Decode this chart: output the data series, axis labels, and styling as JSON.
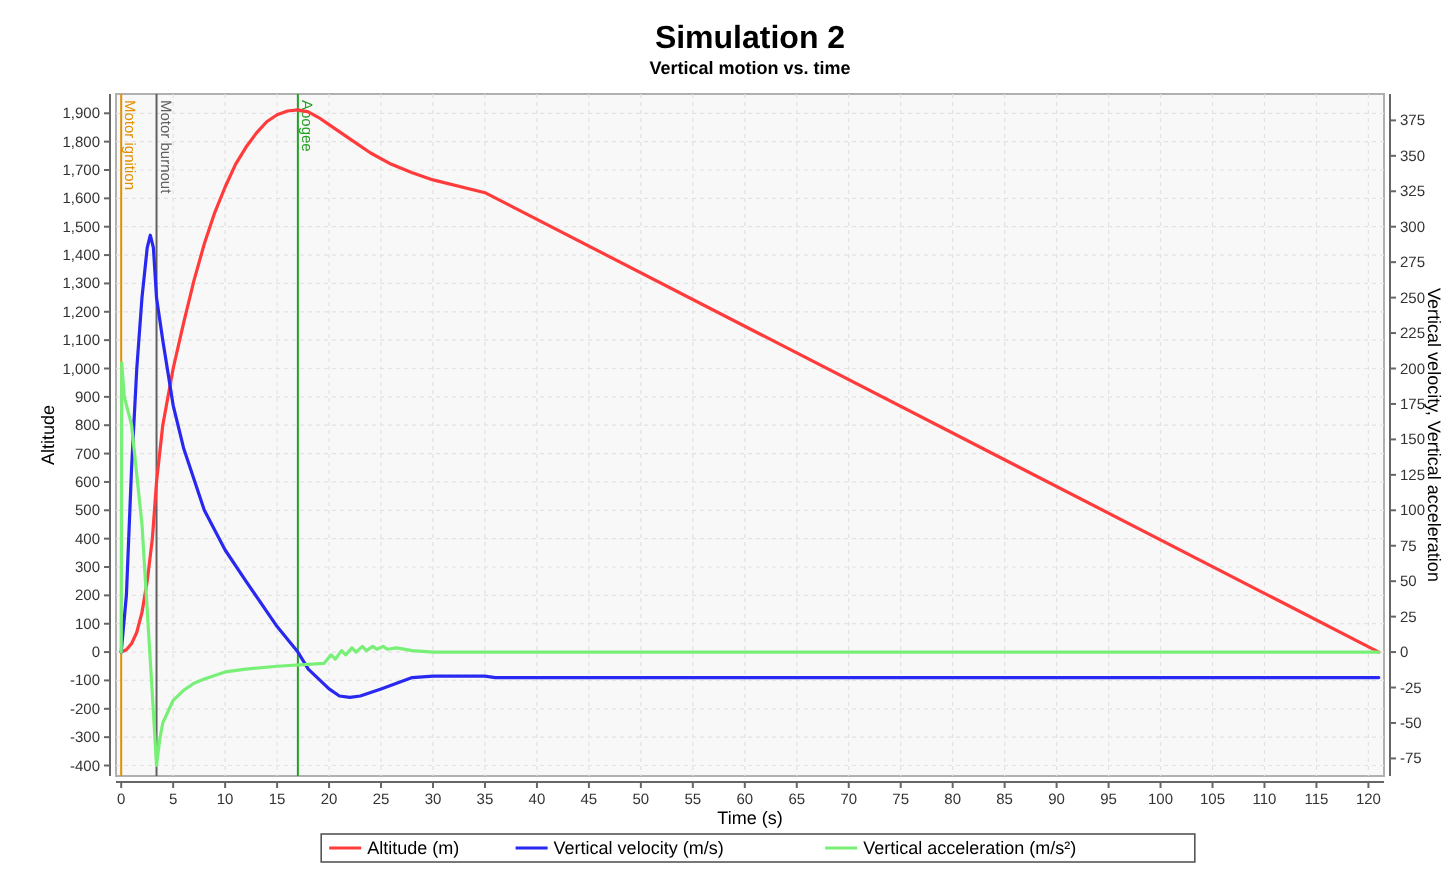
{
  "chart_data": {
    "type": "line",
    "title": "Simulation 2",
    "subtitle": "Vertical motion vs. time",
    "xlabel": "Time (s)",
    "ylabel": "Altitude",
    "y2label": "Vertical velocity, Vertical acceleration",
    "xlim": [
      -0.5,
      121.5
    ],
    "xticks": [
      0,
      5,
      10,
      15,
      20,
      25,
      30,
      35,
      40,
      45,
      50,
      55,
      60,
      65,
      70,
      75,
      80,
      85,
      90,
      95,
      100,
      105,
      110,
      115,
      120
    ],
    "ylim": [
      -437,
      1968
    ],
    "yticks": [
      -400,
      -300,
      -200,
      -100,
      0,
      100,
      200,
      300,
      400,
      500,
      600,
      700,
      800,
      900,
      {
        "value": 1000,
        "label": "1,000"
      },
      {
        "value": 1100,
        "label": "1,100"
      },
      {
        "value": 1200,
        "label": "1,200"
      },
      {
        "value": 1300,
        "label": "1,300"
      },
      {
        "value": 1400,
        "label": "1,400"
      },
      {
        "value": 1500,
        "label": "1,500"
      },
      {
        "value": 1600,
        "label": "1,600"
      },
      {
        "value": 1700,
        "label": "1,700"
      },
      {
        "value": 1800,
        "label": "1,800"
      },
      {
        "value": 1900,
        "label": "1,900"
      }
    ],
    "y2lim": [
      -87.4,
      393.6
    ],
    "y2ticks": [
      -75,
      -50,
      -25,
      0,
      25,
      50,
      75,
      100,
      125,
      150,
      175,
      200,
      225,
      250,
      275,
      300,
      325,
      350,
      375
    ],
    "grid": true,
    "legend": "bottom",
    "marker": "none",
    "line_style": "solid",
    "ref_lines": [
      {
        "axis": "x",
        "value": 0,
        "label": "Motor ignition",
        "color": "#e09000"
      },
      {
        "axis": "x",
        "value": 3.4,
        "label": "Motor burnout",
        "color": "#606060"
      },
      {
        "axis": "x",
        "value": 17,
        "label": "Apogee",
        "color": "#22a022"
      }
    ],
    "series": [
      {
        "name": "Altitude (m)",
        "color": "#ff3b3b",
        "x": [
          0,
          0.5,
          1,
          1.5,
          2,
          2.5,
          3,
          3.4,
          4,
          5,
          6,
          7,
          8,
          9,
          10,
          11,
          12,
          13,
          14,
          15,
          16,
          17,
          18,
          19,
          20,
          22,
          24,
          26,
          28,
          30,
          35,
          121
        ],
        "values": [
          0,
          8,
          30,
          70,
          140,
          250,
          400,
          600,
          800,
          1000,
          1160,
          1310,
          1440,
          1550,
          1640,
          1720,
          1780,
          1830,
          1870,
          1895,
          1908,
          1912,
          1905,
          1885,
          1860,
          1810,
          1760,
          1720,
          1690,
          1665,
          1620,
          0
        ]
      },
      {
        "name": "Vertical velocity (m/s)",
        "color": "#2828f0",
        "axis": "y2",
        "x": [
          0,
          0.5,
          1,
          1.5,
          2,
          2.5,
          2.8,
          3.1,
          3.4,
          4,
          5,
          6,
          8,
          10,
          12,
          15,
          17,
          18,
          20,
          21,
          22,
          23,
          25,
          28,
          30,
          35,
          36,
          121
        ],
        "values": [
          0,
          40,
          130,
          200,
          250,
          285,
          294,
          285,
          250,
          220,
          174,
          144,
          100,
          72,
          50,
          18,
          0,
          -12,
          -26,
          -31,
          -32,
          -31,
          -26,
          -18,
          -17,
          -17,
          -18,
          -18
        ]
      },
      {
        "name": "Vertical acceleration (m/s²)",
        "color": "#78f078",
        "axis": "y2",
        "x": [
          0,
          0.05,
          0.3,
          1,
          2,
          3,
          3.4,
          3.7,
          4,
          5,
          6,
          7,
          8,
          10,
          12,
          15,
          19.5,
          20.2,
          20.6,
          21.2,
          21.6,
          22.2,
          22.6,
          23.2,
          23.6,
          24.2,
          24.6,
          25.2,
          25.6,
          26.5,
          28,
          30,
          121
        ],
        "values": [
          0,
          204,
          180,
          160,
          90,
          -30,
          -80,
          -62,
          -50,
          -34,
          -27,
          -22,
          -19,
          -14,
          -12,
          -10,
          -8,
          -2,
          -5,
          1,
          -2,
          3,
          0,
          4,
          1,
          4,
          2,
          4,
          2,
          3,
          1,
          0,
          0
        ]
      }
    ]
  }
}
